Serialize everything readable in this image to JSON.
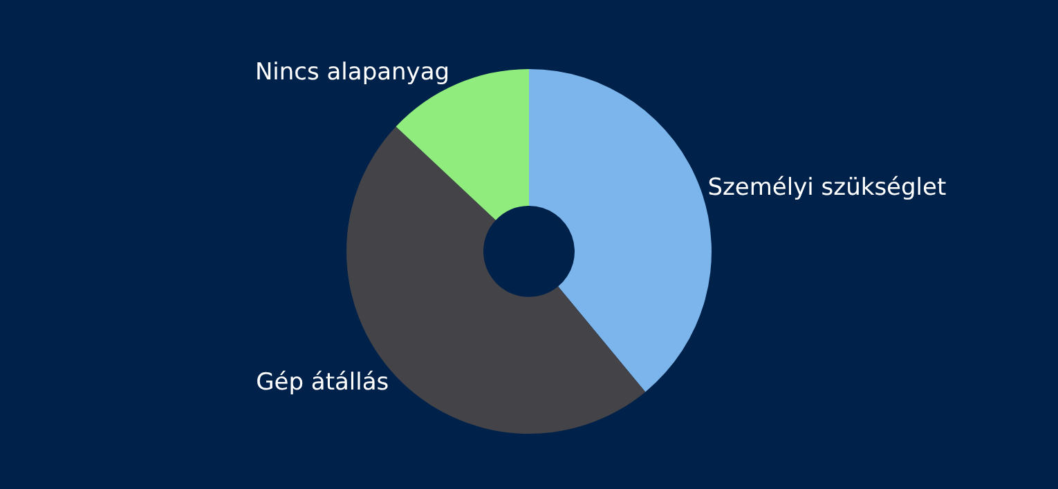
{
  "chart_data": {
    "type": "donut",
    "categories": [
      "Személyi szükséglet",
      "Gép átállás",
      "Nincs alapanyag"
    ],
    "values": [
      39,
      48,
      13
    ],
    "colors": [
      "#7cb5ec",
      "#434348",
      "#90ed7d"
    ],
    "legend": false
  }
}
